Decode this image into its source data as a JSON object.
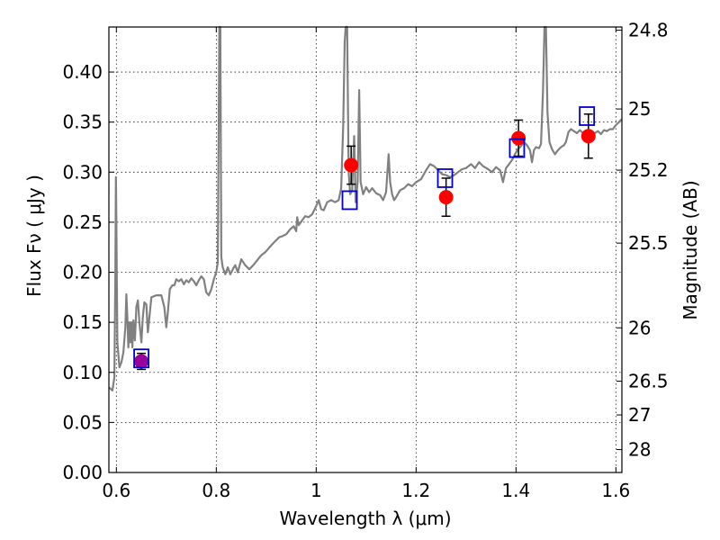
{
  "chart_data": {
    "type": "line",
    "xlabel": "Wavelength  λ (μm)",
    "ylabel": "Flux  Fν  ( μJy )",
    "ylabel_right": "Magnitude (AB)",
    "xlim": [
      0.585,
      1.612
    ],
    "ylim": [
      0.0,
      0.445
    ],
    "grid": true,
    "x_ticks": [
      {
        "value": 0.6,
        "label": "0.6"
      },
      {
        "value": 0.8,
        "label": "0.8"
      },
      {
        "value": 1.0,
        "label": "1"
      },
      {
        "value": 1.2,
        "label": "1.2"
      },
      {
        "value": 1.4,
        "label": "1.4"
      },
      {
        "value": 1.6,
        "label": "1.6"
      }
    ],
    "y_ticks": [
      {
        "value": 0.0,
        "label": "0.00"
      },
      {
        "value": 0.05,
        "label": "0.05"
      },
      {
        "value": 0.1,
        "label": "0.10"
      },
      {
        "value": 0.15,
        "label": "0.15"
      },
      {
        "value": 0.2,
        "label": "0.20"
      },
      {
        "value": 0.25,
        "label": "0.25"
      },
      {
        "value": 0.3,
        "label": "0.30"
      },
      {
        "value": 0.35,
        "label": "0.35"
      },
      {
        "value": 0.4,
        "label": "0.40"
      }
    ],
    "right_ticks": [
      {
        "flux": 0.4418,
        "label": "24.8"
      },
      {
        "flux": 0.3631,
        "label": "25"
      },
      {
        "flux": 0.302,
        "label": "25.2"
      },
      {
        "flux": 0.2291,
        "label": "25.5"
      },
      {
        "flux": 0.1445,
        "label": "26"
      },
      {
        "flux": 0.0912,
        "label": "26.5"
      },
      {
        "flux": 0.0575,
        "label": "27"
      },
      {
        "flux": 0.0229,
        "label": "28"
      }
    ],
    "series": [
      {
        "kind": "spectrum",
        "color": "#808080",
        "points": [
          [
            0.585,
            0.085
          ],
          [
            0.592,
            0.082
          ],
          [
            0.596,
            0.095
          ],
          [
            0.598,
            0.2
          ],
          [
            0.599,
            0.295
          ],
          [
            0.6,
            0.25
          ],
          [
            0.602,
            0.13
          ],
          [
            0.606,
            0.105
          ],
          [
            0.61,
            0.11
          ],
          [
            0.614,
            0.12
          ],
          [
            0.618,
            0.145
          ],
          [
            0.62,
            0.178
          ],
          [
            0.622,
            0.155
          ],
          [
            0.624,
            0.125
          ],
          [
            0.626,
            0.15
          ],
          [
            0.628,
            0.13
          ],
          [
            0.63,
            0.15
          ],
          [
            0.632,
            0.125
          ],
          [
            0.634,
            0.152
          ],
          [
            0.637,
            0.132
          ],
          [
            0.64,
            0.165
          ],
          [
            0.643,
            0.172
          ],
          [
            0.646,
            0.15
          ],
          [
            0.65,
            0.13
          ],
          [
            0.653,
            0.155
          ],
          [
            0.656,
            0.17
          ],
          [
            0.66,
            0.168
          ],
          [
            0.663,
            0.14
          ],
          [
            0.666,
            0.155
          ],
          [
            0.67,
            0.175
          ],
          [
            0.68,
            0.177
          ],
          [
            0.69,
            0.177
          ],
          [
            0.696,
            0.165
          ],
          [
            0.7,
            0.145
          ],
          [
            0.703,
            0.16
          ],
          [
            0.707,
            0.183
          ],
          [
            0.712,
            0.187
          ],
          [
            0.716,
            0.187
          ],
          [
            0.72,
            0.193
          ],
          [
            0.725,
            0.191
          ],
          [
            0.73,
            0.193
          ],
          [
            0.735,
            0.188
          ],
          [
            0.74,
            0.192
          ],
          [
            0.745,
            0.19
          ],
          [
            0.75,
            0.194
          ],
          [
            0.755,
            0.191
          ],
          [
            0.76,
            0.187
          ],
          [
            0.765,
            0.192
          ],
          [
            0.77,
            0.196
          ],
          [
            0.775,
            0.193
          ],
          [
            0.78,
            0.18
          ],
          [
            0.785,
            0.177
          ],
          [
            0.79,
            0.183
          ],
          [
            0.795,
            0.193
          ],
          [
            0.8,
            0.2
          ],
          [
            0.803,
            0.21
          ],
          [
            0.806,
            0.445
          ],
          [
            0.808,
            0.445
          ],
          [
            0.81,
            0.215
          ],
          [
            0.813,
            0.205
          ],
          [
            0.818,
            0.198
          ],
          [
            0.823,
            0.205
          ],
          [
            0.828,
            0.198
          ],
          [
            0.834,
            0.204
          ],
          [
            0.838,
            0.207
          ],
          [
            0.843,
            0.2
          ],
          [
            0.85,
            0.213
          ],
          [
            0.858,
            0.207
          ],
          [
            0.866,
            0.203
          ],
          [
            0.874,
            0.207
          ],
          [
            0.882,
            0.212
          ],
          [
            0.89,
            0.217
          ],
          [
            0.898,
            0.22
          ],
          [
            0.905,
            0.224
          ],
          [
            0.912,
            0.228
          ],
          [
            0.92,
            0.232
          ],
          [
            0.926,
            0.235
          ],
          [
            0.932,
            0.236
          ],
          [
            0.94,
            0.238
          ],
          [
            0.948,
            0.243
          ],
          [
            0.955,
            0.246
          ],
          [
            0.96,
            0.241
          ],
          [
            0.962,
            0.255
          ],
          [
            0.965,
            0.247
          ],
          [
            0.972,
            0.252
          ],
          [
            0.978,
            0.256
          ],
          [
            0.985,
            0.255
          ],
          [
            0.992,
            0.258
          ],
          [
            1.0,
            0.266
          ],
          [
            1.005,
            0.272
          ],
          [
            1.01,
            0.263
          ],
          [
            1.015,
            0.262
          ],
          [
            1.022,
            0.27
          ],
          [
            1.03,
            0.272
          ],
          [
            1.038,
            0.27
          ],
          [
            1.045,
            0.272
          ],
          [
            1.05,
            0.284
          ],
          [
            1.054,
            0.345
          ],
          [
            1.057,
            0.43
          ],
          [
            1.059,
            0.445
          ],
          [
            1.062,
            0.445
          ],
          [
            1.065,
            0.3
          ],
          [
            1.068,
            0.278
          ],
          [
            1.072,
            0.282
          ],
          [
            1.076,
            0.336
          ],
          [
            1.079,
            0.27
          ],
          [
            1.083,
            0.29
          ],
          [
            1.086,
            0.382
          ],
          [
            1.089,
            0.29
          ],
          [
            1.094,
            0.278
          ],
          [
            1.1,
            0.285
          ],
          [
            1.106,
            0.28
          ],
          [
            1.112,
            0.284
          ],
          [
            1.12,
            0.279
          ],
          [
            1.128,
            0.277
          ],
          [
            1.134,
            0.272
          ],
          [
            1.14,
            0.28
          ],
          [
            1.145,
            0.318
          ],
          [
            1.148,
            0.29
          ],
          [
            1.152,
            0.278
          ],
          [
            1.156,
            0.272
          ],
          [
            1.16,
            0.275
          ],
          [
            1.168,
            0.282
          ],
          [
            1.176,
            0.284
          ],
          [
            1.184,
            0.288
          ],
          [
            1.192,
            0.286
          ],
          [
            1.2,
            0.29
          ],
          [
            1.21,
            0.293
          ],
          [
            1.22,
            0.302
          ],
          [
            1.228,
            0.308
          ],
          [
            1.236,
            0.306
          ],
          [
            1.244,
            0.302
          ],
          [
            1.252,
            0.298
          ],
          [
            1.26,
            0.297
          ],
          [
            1.268,
            0.295
          ],
          [
            1.276,
            0.297
          ],
          [
            1.284,
            0.3
          ],
          [
            1.292,
            0.303
          ],
          [
            1.3,
            0.304
          ],
          [
            1.31,
            0.308
          ],
          [
            1.318,
            0.304
          ],
          [
            1.326,
            0.31
          ],
          [
            1.334,
            0.306
          ],
          [
            1.344,
            0.303
          ],
          [
            1.352,
            0.3
          ],
          [
            1.36,
            0.305
          ],
          [
            1.368,
            0.302
          ],
          [
            1.374,
            0.29
          ],
          [
            1.38,
            0.304
          ],
          [
            1.386,
            0.308
          ],
          [
            1.392,
            0.312
          ],
          [
            1.398,
            0.318
          ],
          [
            1.404,
            0.323
          ],
          [
            1.41,
            0.326
          ],
          [
            1.416,
            0.33
          ],
          [
            1.422,
            0.327
          ],
          [
            1.428,
            0.322
          ],
          [
            1.432,
            0.31
          ],
          [
            1.436,
            0.322
          ],
          [
            1.44,
            0.325
          ],
          [
            1.446,
            0.324
          ],
          [
            1.45,
            0.328
          ],
          [
            1.454,
            0.38
          ],
          [
            1.457,
            0.445
          ],
          [
            1.46,
            0.445
          ],
          [
            1.463,
            0.36
          ],
          [
            1.467,
            0.33
          ],
          [
            1.472,
            0.323
          ],
          [
            1.478,
            0.318
          ],
          [
            1.484,
            0.322
          ],
          [
            1.49,
            0.325
          ],
          [
            1.496,
            0.327
          ],
          [
            1.5,
            0.33
          ],
          [
            1.505,
            0.34
          ],
          [
            1.51,
            0.343
          ],
          [
            1.516,
            0.341
          ],
          [
            1.522,
            0.339
          ],
          [
            1.528,
            0.342
          ],
          [
            1.534,
            0.339
          ],
          [
            1.54,
            0.335
          ],
          [
            1.546,
            0.34
          ],
          [
            1.552,
            0.336
          ],
          [
            1.558,
            0.339
          ],
          [
            1.564,
            0.341
          ],
          [
            1.57,
            0.338
          ],
          [
            1.576,
            0.342
          ],
          [
            1.582,
            0.341
          ],
          [
            1.588,
            0.343
          ],
          [
            1.594,
            0.343
          ],
          [
            1.6,
            0.347
          ],
          [
            1.606,
            0.35
          ],
          [
            1.612,
            0.353
          ]
        ]
      },
      {
        "kind": "observed",
        "color": "#ff0000",
        "points": [
          {
            "x": 1.07,
            "y": 0.307,
            "err": 0.019
          },
          {
            "x": 1.26,
            "y": 0.275,
            "err": 0.019
          },
          {
            "x": 1.405,
            "y": 0.334,
            "err": 0.018
          },
          {
            "x": 1.545,
            "y": 0.336,
            "err": 0.022
          }
        ]
      },
      {
        "kind": "observed-upper",
        "color": "#990099",
        "points": [
          {
            "x": 0.65,
            "y": 0.111,
            "err": 0.008
          }
        ]
      },
      {
        "kind": "model-bandpass",
        "color": "#0000cc",
        "points": [
          {
            "x": 0.65,
            "y": 0.114
          },
          {
            "x": 1.067,
            "y": 0.272
          },
          {
            "x": 1.258,
            "y": 0.294
          },
          {
            "x": 1.402,
            "y": 0.324
          },
          {
            "x": 1.542,
            "y": 0.356
          }
        ]
      }
    ]
  }
}
